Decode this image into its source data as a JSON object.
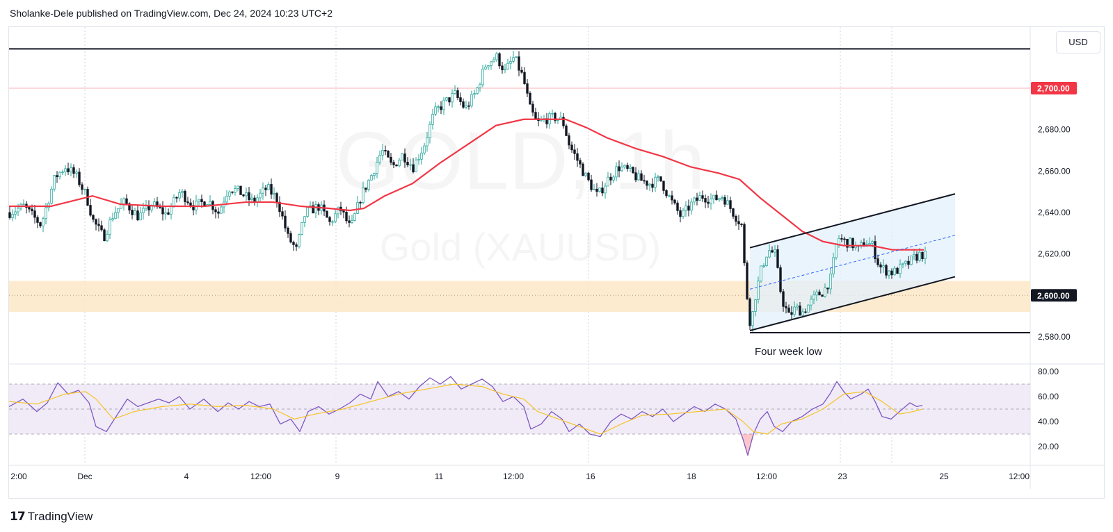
{
  "header": {
    "published_line": "Sholanke-Dele published on TradingView.com, Dec 24, 2024 10:23 UTC+2"
  },
  "footer": {
    "logo_mark": "17",
    "logo_text": "TradingView"
  },
  "currency_button": "USD",
  "watermark": {
    "symbol_line": "GOLD, 1h",
    "name_line": "Gold (XAUUSD)"
  },
  "colors": {
    "up": "#26a69a",
    "down": "#131722",
    "ma": "#f23645",
    "rsi": "#7e57c2",
    "rsi_ma": "#f7c325",
    "zone": "#fce8c7",
    "channel": "#e3f0fb",
    "price_tag": "#f23645"
  },
  "chart_data": [
    {
      "type": "candlestick",
      "title": "",
      "symbol": "XAUUSD",
      "interval": "1h",
      "x_ticks": [
        "2:00",
        "Dec",
        "4",
        "12:00",
        "9",
        "11",
        "12:00",
        "16",
        "18",
        "12:00",
        "23",
        "25",
        "12:00"
      ],
      "y_ticks": [
        "2,580.00",
        "2,600.00",
        "2,620.00",
        "2,640.00",
        "2,660.00",
        "2,680.00",
        "2,700.00"
      ],
      "ylim": [
        2573,
        2723
      ],
      "price_labels": [
        {
          "label": "2,700.00",
          "value": 2700,
          "color": "#f23645"
        },
        {
          "label": "2,600.00",
          "value": 2600,
          "color": "#131722"
        }
      ],
      "close_path": [
        [
          0,
          2640
        ],
        [
          20,
          2643
        ],
        [
          45,
          2634
        ],
        [
          65,
          2657
        ],
        [
          80,
          2662
        ],
        [
          95,
          2658
        ],
        [
          110,
          2648
        ],
        [
          120,
          2636
        ],
        [
          135,
          2628
        ],
        [
          150,
          2640
        ],
        [
          165,
          2645
        ],
        [
          185,
          2638
        ],
        [
          205,
          2644
        ],
        [
          225,
          2639
        ],
        [
          245,
          2650
        ],
        [
          265,
          2643
        ],
        [
          285,
          2646
        ],
        [
          300,
          2640
        ],
        [
          315,
          2652
        ],
        [
          330,
          2650
        ],
        [
          350,
          2645
        ],
        [
          370,
          2652
        ],
        [
          385,
          2646
        ],
        [
          400,
          2628
        ],
        [
          412,
          2622
        ],
        [
          425,
          2640
        ],
        [
          445,
          2643
        ],
        [
          460,
          2635
        ],
        [
          475,
          2642
        ],
        [
          490,
          2632
        ],
        [
          505,
          2648
        ],
        [
          520,
          2658
        ],
        [
          535,
          2670
        ],
        [
          550,
          2662
        ],
        [
          565,
          2668
        ],
        [
          580,
          2662
        ],
        [
          595,
          2672
        ],
        [
          610,
          2688
        ],
        [
          625,
          2693
        ],
        [
          640,
          2697
        ],
        [
          655,
          2690
        ],
        [
          670,
          2698
        ],
        [
          685,
          2712
        ],
        [
          700,
          2715
        ],
        [
          712,
          2708
        ],
        [
          725,
          2715
        ],
        [
          738,
          2705
        ],
        [
          748,
          2690
        ],
        [
          758,
          2683
        ],
        [
          770,
          2685
        ],
        [
          785,
          2686
        ],
        [
          795,
          2684
        ],
        [
          805,
          2672
        ],
        [
          815,
          2666
        ],
        [
          830,
          2656
        ],
        [
          845,
          2648
        ],
        [
          860,
          2656
        ],
        [
          875,
          2662
        ],
        [
          890,
          2660
        ],
        [
          905,
          2656
        ],
        [
          920,
          2654
        ],
        [
          935,
          2656
        ],
        [
          950,
          2646
        ],
        [
          965,
          2638
        ],
        [
          980,
          2644
        ],
        [
          995,
          2648
        ],
        [
          1010,
          2646
        ],
        [
          1025,
          2648
        ],
        [
          1040,
          2640
        ],
        [
          1052,
          2634
        ],
        [
          1058,
          2605
        ],
        [
          1065,
          2585
        ],
        [
          1072,
          2600
        ],
        [
          1080,
          2612
        ],
        [
          1090,
          2622
        ],
        [
          1100,
          2620
        ],
        [
          1110,
          2598
        ],
        [
          1120,
          2590
        ],
        [
          1130,
          2594
        ],
        [
          1140,
          2592
        ],
        [
          1150,
          2596
        ],
        [
          1160,
          2600
        ],
        [
          1170,
          2602
        ],
        [
          1180,
          2608
        ],
        [
          1190,
          2628
        ],
        [
          1200,
          2626
        ],
        [
          1210,
          2625
        ],
        [
          1220,
          2622
        ],
        [
          1230,
          2626
        ],
        [
          1240,
          2624
        ],
        [
          1250,
          2614
        ],
        [
          1260,
          2612
        ],
        [
          1270,
          2611
        ],
        [
          1280,
          2613
        ],
        [
          1290,
          2615
        ],
        [
          1300,
          2618
        ],
        [
          1310,
          2620
        ],
        [
          1318,
          2619
        ]
      ],
      "ma": {
        "name": "",
        "path": [
          [
            0,
            2643
          ],
          [
            60,
            2643
          ],
          [
            120,
            2648
          ],
          [
            160,
            2644
          ],
          [
            220,
            2643
          ],
          [
            280,
            2643
          ],
          [
            340,
            2645
          ],
          [
            380,
            2645
          ],
          [
            420,
            2643
          ],
          [
            460,
            2642
          ],
          [
            490,
            2641
          ],
          [
            510,
            2642
          ],
          [
            540,
            2648
          ],
          [
            580,
            2654
          ],
          [
            620,
            2664
          ],
          [
            660,
            2673
          ],
          [
            700,
            2682
          ],
          [
            740,
            2685
          ],
          [
            770,
            2685
          ],
          [
            800,
            2685
          ],
          [
            830,
            2681
          ],
          [
            860,
            2676
          ],
          [
            900,
            2671
          ],
          [
            940,
            2667
          ],
          [
            980,
            2662
          ],
          [
            1020,
            2659
          ],
          [
            1050,
            2656
          ],
          [
            1080,
            2647
          ],
          [
            1110,
            2639
          ],
          [
            1140,
            2631
          ],
          [
            1170,
            2626
          ],
          [
            1200,
            2624
          ],
          [
            1240,
            2624
          ],
          [
            1270,
            2622
          ],
          [
            1300,
            2622
          ],
          [
            1315,
            2622
          ]
        ]
      },
      "horizontal_lines": [
        {
          "value": 2719,
          "color": "#131722",
          "from": 0,
          "to": 1480
        },
        {
          "value": 2582,
          "color": "#131722",
          "from": 1065,
          "to": 1480
        }
      ],
      "support_zone": {
        "low": 2592,
        "high": 2607
      },
      "channel": {
        "upper": [
          [
            1065,
            2623
          ],
          [
            1360,
            2649
          ]
        ],
        "lower": [
          [
            1065,
            2583
          ],
          [
            1360,
            2609
          ]
        ],
        "mid": [
          [
            1065,
            2603
          ],
          [
            1360,
            2629
          ]
        ]
      },
      "annotations": [
        {
          "text": "Four week low",
          "x": 1072,
          "value": 2578
        }
      ]
    },
    {
      "type": "line",
      "title": "",
      "y_ticks": [
        "20.00",
        "40.00",
        "60.00",
        "80.00"
      ],
      "ylim": [
        10,
        85
      ],
      "bands": {
        "upper": 70,
        "middle": 50,
        "lower": 30
      },
      "series": [
        {
          "name": "",
          "path": [
            [
              0,
              52
            ],
            [
              20,
              58
            ],
            [
              40,
              48
            ],
            [
              55,
              55
            ],
            [
              70,
              71
            ],
            [
              85,
              62
            ],
            [
              100,
              65
            ],
            [
              115,
              55
            ],
            [
              125,
              36
            ],
            [
              140,
              32
            ],
            [
              155,
              45
            ],
            [
              170,
              58
            ],
            [
              185,
              52
            ],
            [
              200,
              55
            ],
            [
              215,
              58
            ],
            [
              230,
              55
            ],
            [
              245,
              60
            ],
            [
              260,
              50
            ],
            [
              280,
              58
            ],
            [
              300,
              48
            ],
            [
              315,
              55
            ],
            [
              330,
              50
            ],
            [
              345,
              56
            ],
            [
              360,
              52
            ],
            [
              375,
              54
            ],
            [
              390,
              38
            ],
            [
              405,
              42
            ],
            [
              418,
              32
            ],
            [
              430,
              48
            ],
            [
              445,
              52
            ],
            [
              460,
              46
            ],
            [
              475,
              50
            ],
            [
              490,
              55
            ],
            [
              505,
              62
            ],
            [
              520,
              58
            ],
            [
              530,
              72
            ],
            [
              545,
              60
            ],
            [
              560,
              64
            ],
            [
              575,
              58
            ],
            [
              590,
              68
            ],
            [
              605,
              75
            ],
            [
              620,
              70
            ],
            [
              635,
              76
            ],
            [
              650,
              66
            ],
            [
              665,
              70
            ],
            [
              680,
              74
            ],
            [
              695,
              68
            ],
            [
              710,
              56
            ],
            [
              725,
              60
            ],
            [
              740,
              52
            ],
            [
              750,
              34
            ],
            [
              765,
              38
            ],
            [
              780,
              48
            ],
            [
              795,
              42
            ],
            [
              805,
              32
            ],
            [
              820,
              38
            ],
            [
              835,
              30
            ],
            [
              850,
              28
            ],
            [
              865,
              40
            ],
            [
              880,
              46
            ],
            [
              895,
              42
            ],
            [
              910,
              48
            ],
            [
              925,
              44
            ],
            [
              940,
              50
            ],
            [
              955,
              40
            ],
            [
              970,
              46
            ],
            [
              985,
              52
            ],
            [
              1000,
              48
            ],
            [
              1015,
              54
            ],
            [
              1030,
              50
            ],
            [
              1045,
              42
            ],
            [
              1055,
              26
            ],
            [
              1062,
              13
            ],
            [
              1070,
              30
            ],
            [
              1080,
              42
            ],
            [
              1090,
              48
            ],
            [
              1100,
              36
            ],
            [
              1112,
              32
            ],
            [
              1125,
              40
            ],
            [
              1140,
              44
            ],
            [
              1155,
              50
            ],
            [
              1170,
              54
            ],
            [
              1180,
              62
            ],
            [
              1190,
              72
            ],
            [
              1200,
              64
            ],
            [
              1210,
              58
            ],
            [
              1225,
              62
            ],
            [
              1235,
              66
            ],
            [
              1245,
              56
            ],
            [
              1255,
              44
            ],
            [
              1268,
              42
            ],
            [
              1280,
              48
            ],
            [
              1295,
              55
            ],
            [
              1305,
              52
            ],
            [
              1313,
              53
            ]
          ],
          "color": "#7e57c2"
        },
        {
          "name": "",
          "path": [
            [
              0,
              56
            ],
            [
              40,
              54
            ],
            [
              80,
              62
            ],
            [
              110,
              64
            ],
            [
              125,
              58
            ],
            [
              150,
              42
            ],
            [
              180,
              48
            ],
            [
              220,
              52
            ],
            [
              260,
              54
            ],
            [
              300,
              52
            ],
            [
              340,
              53
            ],
            [
              380,
              50
            ],
            [
              410,
              42
            ],
            [
              440,
              46
            ],
            [
              480,
              50
            ],
            [
              520,
              56
            ],
            [
              560,
              62
            ],
            [
              600,
              66
            ],
            [
              640,
              70
            ],
            [
              680,
              68
            ],
            [
              710,
              62
            ],
            [
              740,
              58
            ],
            [
              760,
              48
            ],
            [
              790,
              42
            ],
            [
              820,
              36
            ],
            [
              850,
              30
            ],
            [
              880,
              38
            ],
            [
              910,
              45
            ],
            [
              950,
              46
            ],
            [
              990,
              48
            ],
            [
              1030,
              50
            ],
            [
              1055,
              40
            ],
            [
              1070,
              32
            ],
            [
              1090,
              30
            ],
            [
              1110,
              38
            ],
            [
              1140,
              42
            ],
            [
              1170,
              50
            ],
            [
              1200,
              62
            ],
            [
              1230,
              64
            ],
            [
              1255,
              56
            ],
            [
              1280,
              46
            ],
            [
              1300,
              48
            ],
            [
              1313,
              50
            ]
          ],
          "color": "#f7c325"
        }
      ]
    }
  ]
}
